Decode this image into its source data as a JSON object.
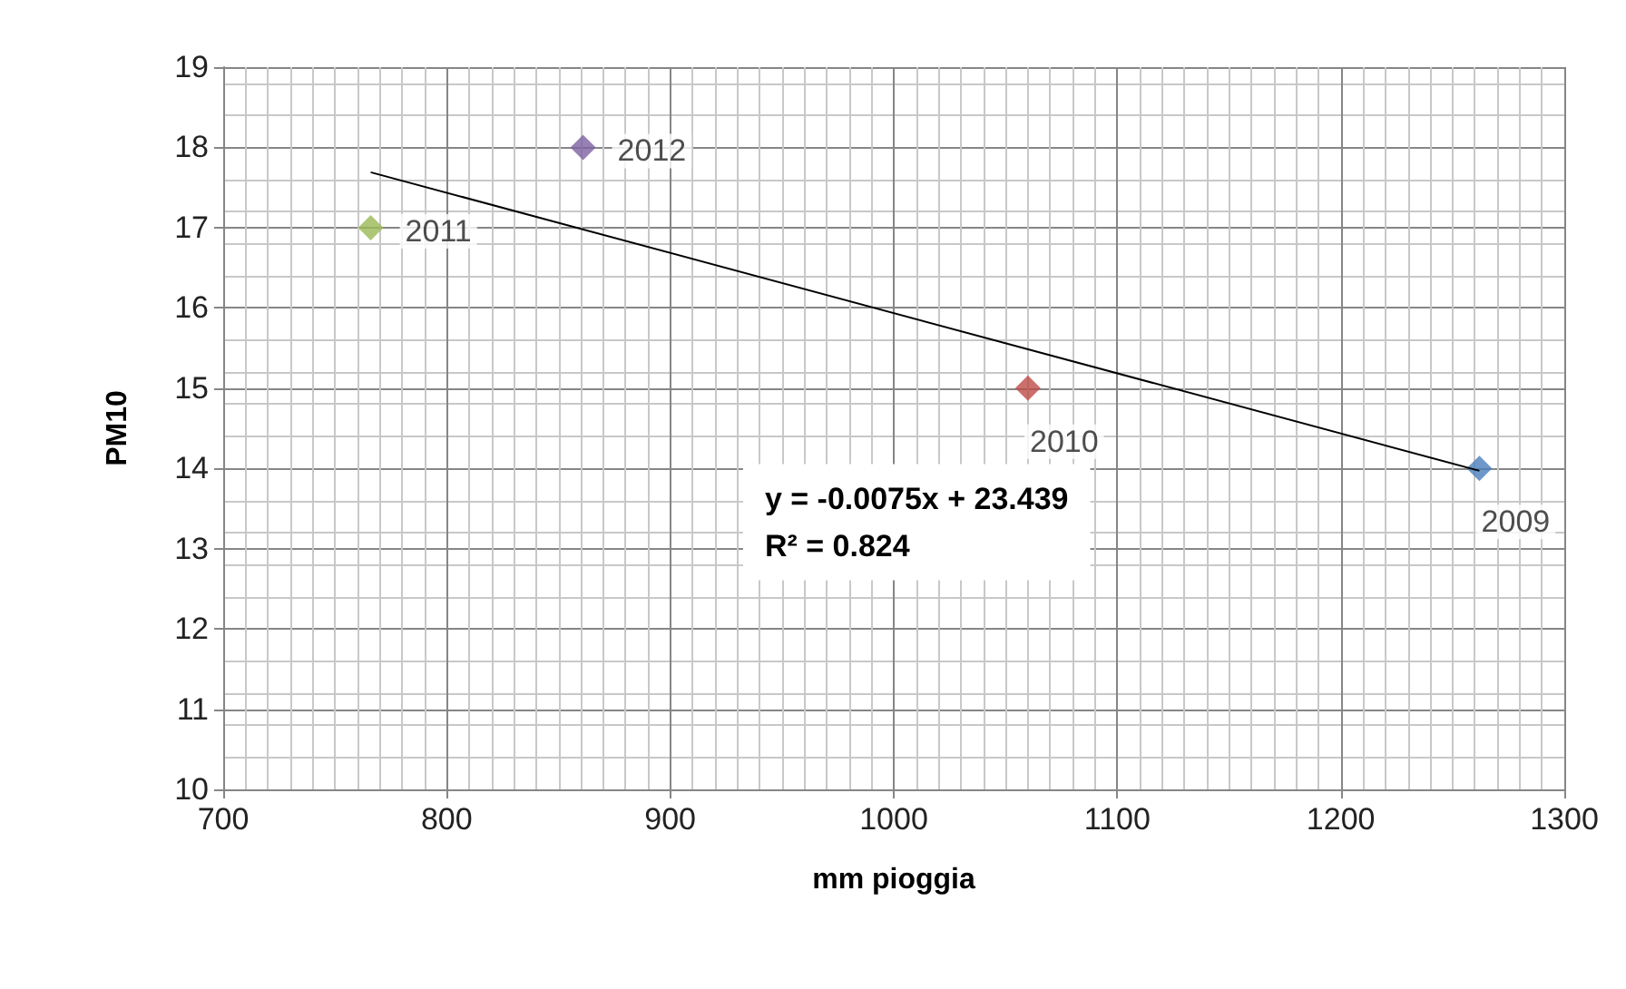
{
  "chart_data": {
    "type": "scatter",
    "xlabel": "mm pioggia",
    "ylabel": "PM10",
    "xlim": [
      700,
      1300
    ],
    "xticks": [
      700,
      800,
      900,
      1000,
      1100,
      1200,
      1300
    ],
    "ylim": [
      10,
      19
    ],
    "yticks": [
      10,
      11,
      12,
      13,
      14,
      15,
      16,
      17,
      18,
      19
    ],
    "grid": true,
    "marker": "diamond",
    "annotations": [
      "y = -0.0075x + 23.439",
      "R² = 0.824"
    ],
    "series": [
      {
        "type": "line",
        "marker": "none",
        "color": "#000000",
        "x": [
          766,
          1262
        ],
        "values": [
          17.69,
          13.97
        ]
      },
      {
        "name": "2009",
        "color": "#4a7ebb",
        "x": [
          1262
        ],
        "values": [
          14
        ]
      },
      {
        "name": "2010",
        "color": "#be4b48",
        "x": [
          1060
        ],
        "values": [
          15
        ]
      },
      {
        "name": "2011",
        "color": "#98b954",
        "x": [
          766
        ],
        "values": [
          17
        ]
      },
      {
        "name": "2012",
        "color": "#7d60a0",
        "x": [
          861
        ],
        "values": [
          18
        ]
      }
    ]
  }
}
